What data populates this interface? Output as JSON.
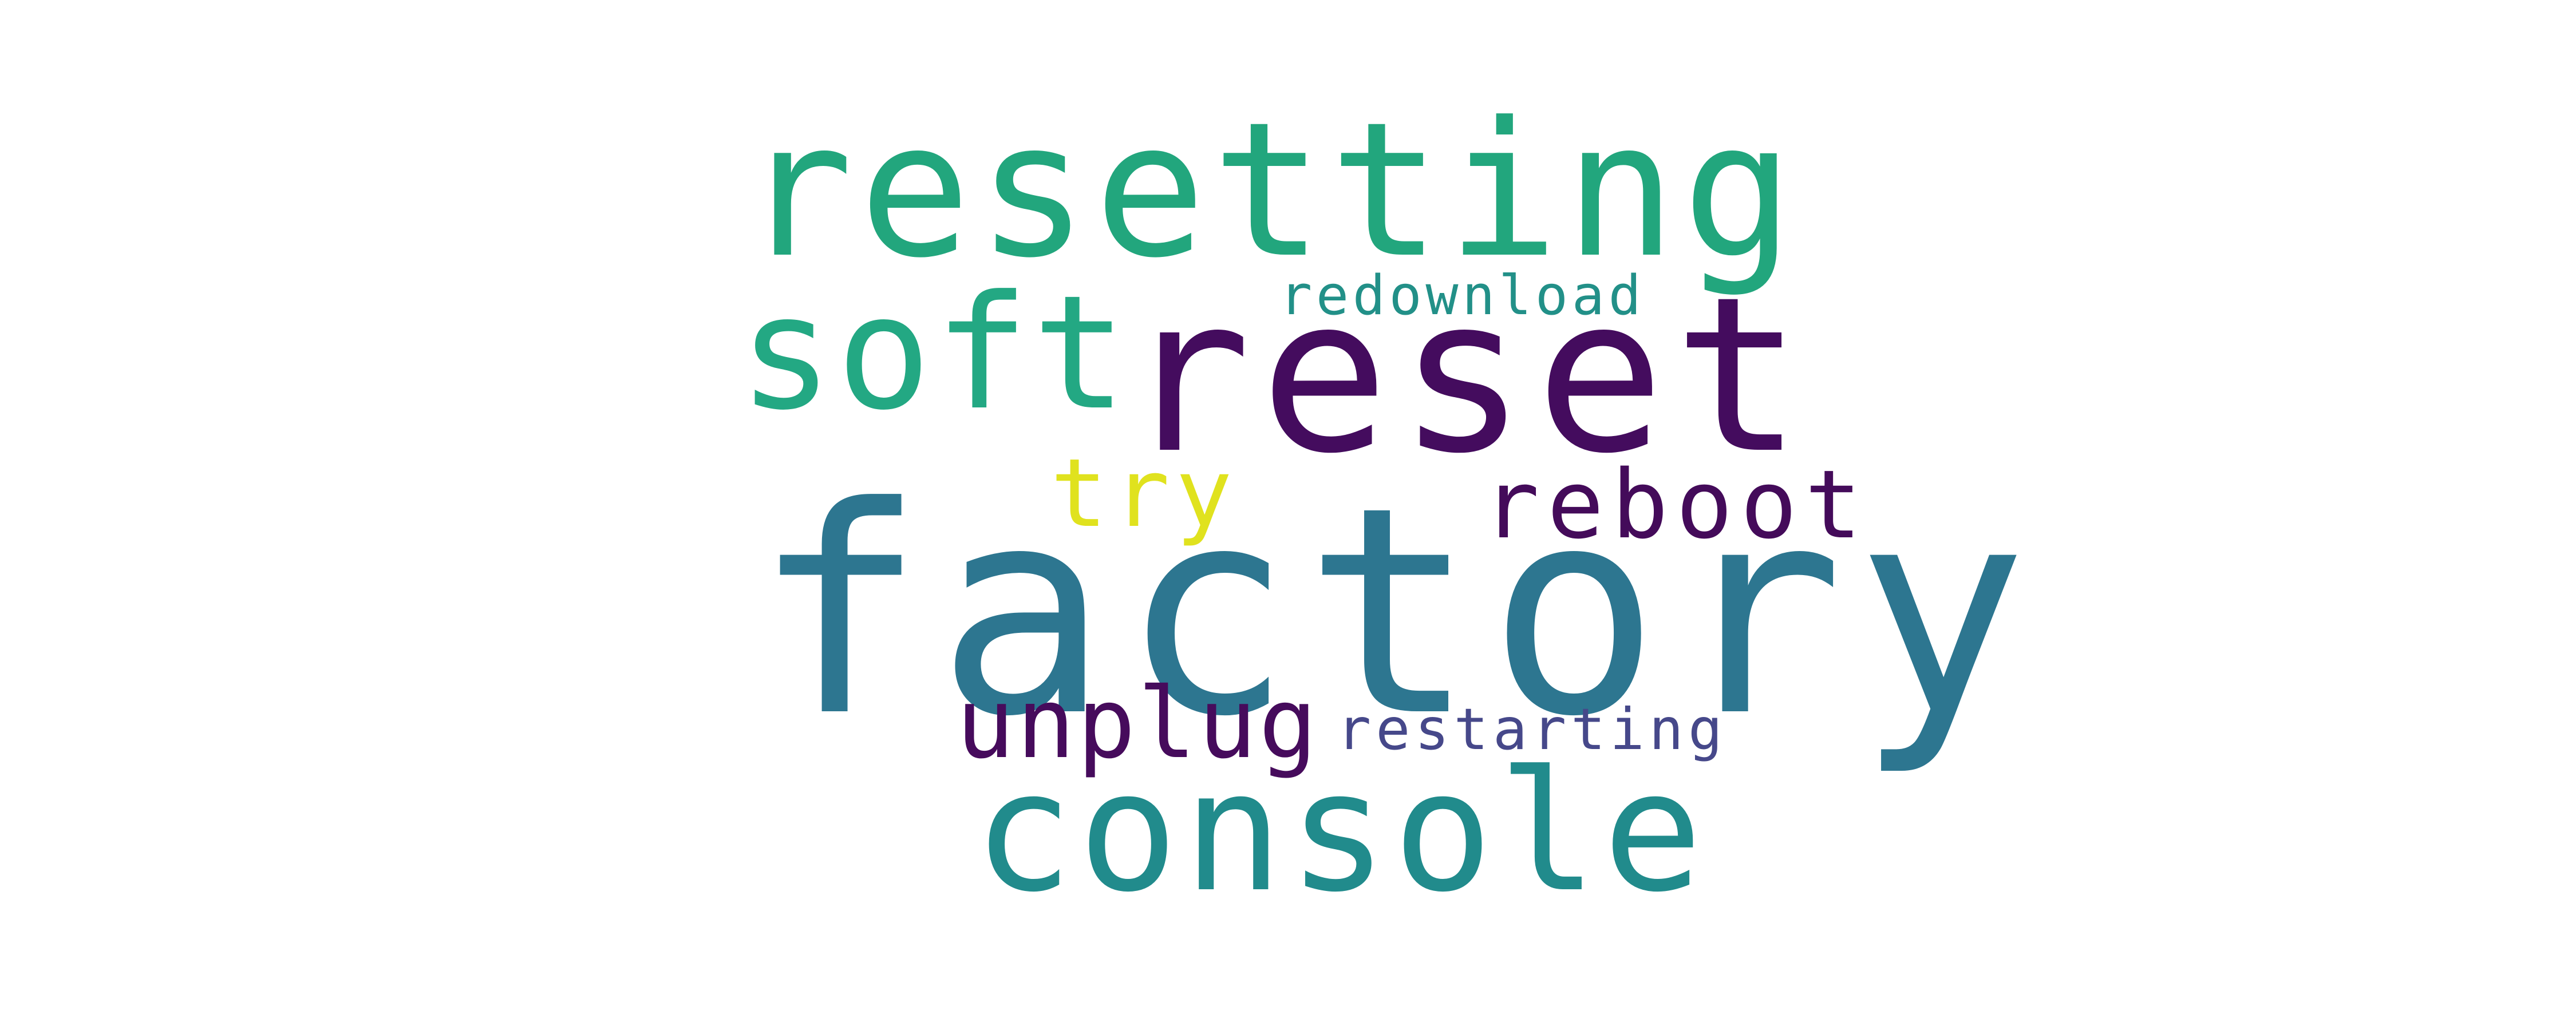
{
  "words": {
    "factory": {
      "text": "factory",
      "color": "#2d7690"
    },
    "reset": {
      "text": "reset",
      "color": "#440c5e"
    },
    "resetting": {
      "text": "resetting",
      "color": "#22a67d"
    },
    "console": {
      "text": "console",
      "color": "#218b8c"
    },
    "soft": {
      "text": "soft",
      "color": "#23a883"
    },
    "reboot": {
      "text": "reboot",
      "color": "#440b5a"
    },
    "unplug": {
      "text": "unplug",
      "color": "#460b5c"
    },
    "try": {
      "text": "try",
      "color": "#e0e21e"
    },
    "redownload": {
      "text": "redownload",
      "color": "#229088"
    },
    "restarting": {
      "text": "restarting",
      "color": "#46488a"
    }
  }
}
